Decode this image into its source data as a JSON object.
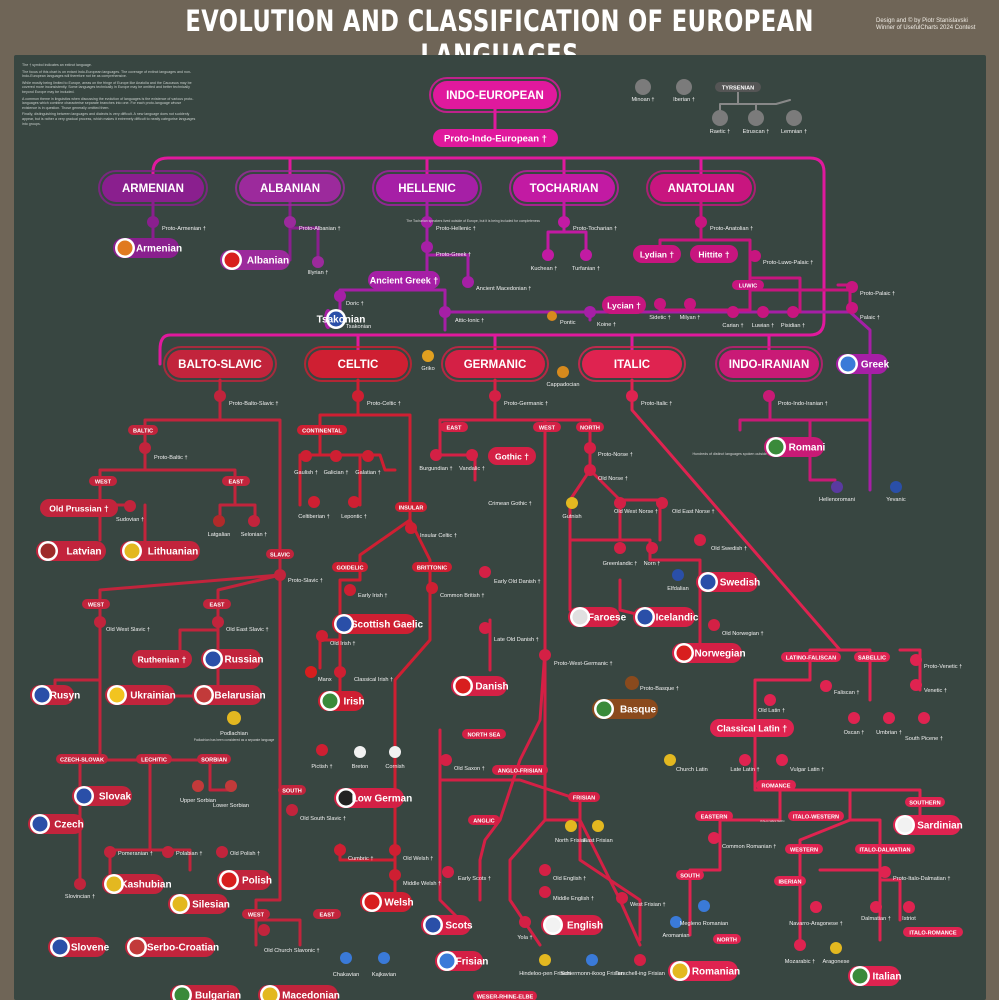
{
  "header": {
    "title": "EVOLUTION AND CLASSIFICATION OF EUROPEAN LANGUAGES",
    "credit_line1": "Design and © by Piotr Stanislavski",
    "credit_line2": "Winner of UsefulCharts 2024 Contest"
  },
  "notes": [
    "The † symbol indicates an extinct language.",
    "The focus of this chart is on extant Indo-European languages. The coverage of extinct languages and non-Indo-European languages will therefore not be as comprehensive.",
    "While mostly being limited to Europe, areas on the fringe of Europe like Anatolia and the Caucasus may be covered more inconsistently. Some languages technically in Europe may be omitted and better technically beyond Europe may be included.",
    "A common theme in linguistics when discussing the evolution of languages is the existence of various proto-languages which combine characterise separate branches into one. For each proto-language whose existence is in question. Those generally omitted them.",
    "Finally, distinguishing between languages and dialects is very difficult. A new language does not suddenly appear, but is rather a very gradual process, which makes it extremely difficult to neatly categorise languages into groups."
  ],
  "colors": {
    "background": "#6f6557",
    "panel": "#384641",
    "indo_european": "#e0199d",
    "armenian": "#8a1f8e",
    "albanian": "#9c2a9c",
    "hellenic": "#a61fa6",
    "tocharian": "#c21aa3",
    "anatolian": "#c8157f",
    "balto_slavic": "#c2243c",
    "celtic": "#cf1f32",
    "germanic": "#d42045",
    "italic": "#df2350",
    "indo_iranian": "#c91a76",
    "isolates": "#7b7b7b",
    "basque": "#8a4a1d"
  },
  "nodes": {
    "ie": "INDO-EUROPEAN",
    "pie": "Proto-Indo-European †",
    "minoan": "Minoan †",
    "iberian": "Iberian †",
    "tyrsenian": "TYRSENIAN",
    "raetic": "Raetic †",
    "etruscan": "Etruscan †",
    "lemnian": "Lemnian †",
    "armenian_br": "ARMENIAN",
    "albanian_br": "ALBANIAN",
    "hellenic_br": "HELLENIC",
    "tocharian_br": "TOCHARIAN",
    "anatolian_br": "ANATOLIAN",
    "proto_armenian": "Proto-Armenian †",
    "armenian": "Armenian",
    "proto_albanian": "Proto-Albanian †",
    "albanian": "Albanian",
    "illyrian": "Illyrian †",
    "proto_hellenic": "Proto-Hellenic †",
    "proto_greek": "Proto-Greek †",
    "ancient_greek": "Ancient Greek †",
    "ancient_macedonian": "Ancient Macedonian †",
    "doric": "Doric †",
    "tsakonian": "Tsakonian",
    "attic_ionic": "Attic-Ionic †",
    "pontic": "Pontic",
    "koine": "Koine †",
    "griko": "Griko",
    "cappadocian": "Cappadocian",
    "greek": "Greek",
    "proto_tocharian": "Proto-Tocharian †",
    "kuchean": "Kuchean †",
    "turfanian": "Turfanian †",
    "tocharian_note": "The Tocharian speakers lived outside of Europe, but it is being included for completeness",
    "proto_anatolian": "Proto-Anatolian †",
    "lydian": "Lydian †",
    "hittite": "Hittite †",
    "proto_luwo_palaic": "Proto-Luwo-Palaic †",
    "luwic": "LUWIC",
    "lycian": "Lycian †",
    "sidetic": "Sidetic †",
    "milyan": "Milyan †",
    "carian": "Carian †",
    "luwian": "Luwian †",
    "pisidian": "Pisidian †",
    "proto_palaic": "Proto-Palaic †",
    "palaic": "Palaic †",
    "balto_slavic_br": "BALTO-SLAVIC",
    "celtic_br": "CELTIC",
    "germanic_br": "GERMANIC",
    "italic_br": "ITALIC",
    "indo_iranian_br": "INDO-IRANIAN",
    "proto_balto_slavic": "Proto-Balto-Slavic †",
    "baltic": "BALTIC",
    "proto_baltic": "Proto-Baltic †",
    "west": "WEST",
    "east": "EAST",
    "old_prussian": "Old Prussian †",
    "sudovian": "Sudovian †",
    "latgalian": "Latgalian",
    "selonian": "Selonian †",
    "latvian": "Latvian",
    "lithuanian": "Lithuanian",
    "slavic": "SLAVIC",
    "proto_slavic": "Proto-Slavic †",
    "old_west_slavic": "Old West Slavic †",
    "old_east_slavic": "Old East Slavic †",
    "ruthenian": "Ruthenian †",
    "russian": "Russian",
    "rusyn": "Rusyn",
    "ukrainian": "Ukrainian",
    "belarusian": "Belarusian",
    "podlachian": "Podlachian",
    "podlachian_note": "Podlachian has been considered as a separate language",
    "czech_slovak": "CZECH-SLOVAK",
    "lechitic": "LECHITIC",
    "sorbian": "SORBIAN",
    "upper_sorbian": "Upper Sorbian",
    "lower_sorbian": "Lower Sorbian",
    "slovak": "Slovak",
    "czech": "Czech",
    "south": "SOUTH",
    "old_south_slavic": "Old South Slavic †",
    "pomeranian": "Pomeranian †",
    "polabian": "Polabian †",
    "old_polish": "Old Polish †",
    "kashubian": "Kashubian",
    "slovincian": "Slovincian †",
    "polish": "Polish",
    "silesian": "Silesian",
    "slovene": "Slovene",
    "serbo_croatian": "Serbo-Croatian",
    "old_church_slavonic": "Old Church Slavonic †",
    "chakavian": "Chakavian",
    "kajkavian": "Kajkavian",
    "bulgarian": "Bulgarian",
    "macedonian": "Macedonian",
    "proto_celtic": "Proto-Celtic †",
    "continental": "CONTINENTAL",
    "gaulish": "Gaulish †",
    "galician": "Galician †",
    "galatian": "Galatian †",
    "celtiberian": "Celtiberian †",
    "lepontic": "Lepontic †",
    "insular": "INSULAR",
    "insular_celtic": "Insular Celtic †",
    "goidelic": "GOIDELIC",
    "brittonic": "BRITTONIC",
    "early_irish": "Early Irish †",
    "common_british": "Common British †",
    "scottish_gaelic": "Scottish Gaelic",
    "old_irish": "Old Irish †",
    "manx": "Manx",
    "classical_irish": "Classical Irish †",
    "irish": "Irish",
    "pictish": "Pictish †",
    "breton": "Breton",
    "cornish": "Cornish",
    "cumbric": "Cumbric †",
    "old_welsh": "Old Welsh †",
    "middle_welsh": "Middle Welsh †",
    "welsh": "Welsh",
    "proto_germanic": "Proto-Germanic †",
    "north": "NORTH",
    "burgundian": "Burgundian †",
    "vandalic": "Vandalic †",
    "gothic": "Gothic †",
    "crimean_gothic": "Crimean Gothic †",
    "proto_norse": "Proto-Norse †",
    "old_norse": "Old Norse †",
    "gutnish": "Gutnish",
    "old_west_norse": "Old West Norse †",
    "old_east_norse": "Old East Norse †",
    "old_swedish": "Old Swedish †",
    "greenlandic": "Greenlandic †",
    "norn": "Norn †",
    "elfdalian": "Elfdalian",
    "swedish": "Swedish",
    "faroese": "Faroese",
    "icelandic": "Icelandic",
    "old_norwegian": "Old Norwegian †",
    "norwegian": "Norwegian",
    "early_old_danish": "Early Old Danish †",
    "late_old_danish": "Late Old Danish †",
    "danish": "Danish",
    "proto_west_germanic": "Proto-West-Germanic †",
    "north_sea": "NORTH SEA",
    "old_saxon": "Old Saxon †",
    "anglo_frisian": "ANGLO-FRISIAN",
    "low_german": "Low German",
    "anglic": "ANGLIC",
    "frisian_br": "FRISIAN",
    "north_frisian": "North Frisian",
    "east_frisian": "East Frisian",
    "early_scots": "Early Scots †",
    "old_english": "Old English †",
    "middle_english": "Middle English †",
    "west_frisian": "West Frisian †",
    "scots": "Scots",
    "yola": "Yola †",
    "english": "English",
    "frisian": "Frisian",
    "hindeloopen": "Hindeloo-pen Frisian",
    "schiermonnikoog": "Schiermonn-ikoog Frisian",
    "terschelling": "Terschell-ing Frisian",
    "weser_rhine": "WESER-RHINE-ELBE",
    "basque": "Basque",
    "proto_basque": "Proto-Basque †",
    "proto_italic": "Proto-Italic †",
    "latino_faliscan": "LATINO-FALISCAN",
    "sabellic": "SABELLIC",
    "proto_venetic": "Proto-Venetic †",
    "venetic": "Venetic †",
    "faliscan": "Faliscan †",
    "old_latin": "Old Latin †",
    "oscan": "Oscan †",
    "umbrian": "Umbrian †",
    "south_picene": "South Picene †",
    "classical_latin": "Classical Latin †",
    "church_latin": "Church Latin",
    "late_latin": "Late Latin †",
    "vulgar_latin": "Vulgar Latin †",
    "romance": "ROMANCE",
    "eastern": "EASTERN",
    "italo_western": "ITALO-WESTERN",
    "southern": "SOUTHERN",
    "sardinian": "Sardinian",
    "common_romanian": "Common Romanian †",
    "western": "WESTERN",
    "italo_dalmatian": "ITALO-DALMATIAN",
    "proto_italo_dalmatian": "Proto-Italo-Dalmatian †",
    "south_r": "SOUTH",
    "aromanian": "Aromanian",
    "megleno_romanian": "Megleno Romanian",
    "iberian_r": "IBERIAN",
    "navarro_aragonese": "Navarro-Aragonese †",
    "dalmatian": "Dalmatian †",
    "istriot": "Istriot",
    "north_r": "NORTH",
    "romanian": "Romanian",
    "mozarabic": "Mozarabic †",
    "aragonese": "Aragonese",
    "italo_romance": "ITALO-ROMANCE",
    "italian": "Italian",
    "proto_indo_iranian": "Proto-Indo-Iranian †",
    "indo_iranian_note": "Hundreds of distinct languages spoken outside of Europe",
    "romani": "Romani",
    "hellenoromani": "Hellenoromani",
    "yevanic": "Yevanic"
  }
}
